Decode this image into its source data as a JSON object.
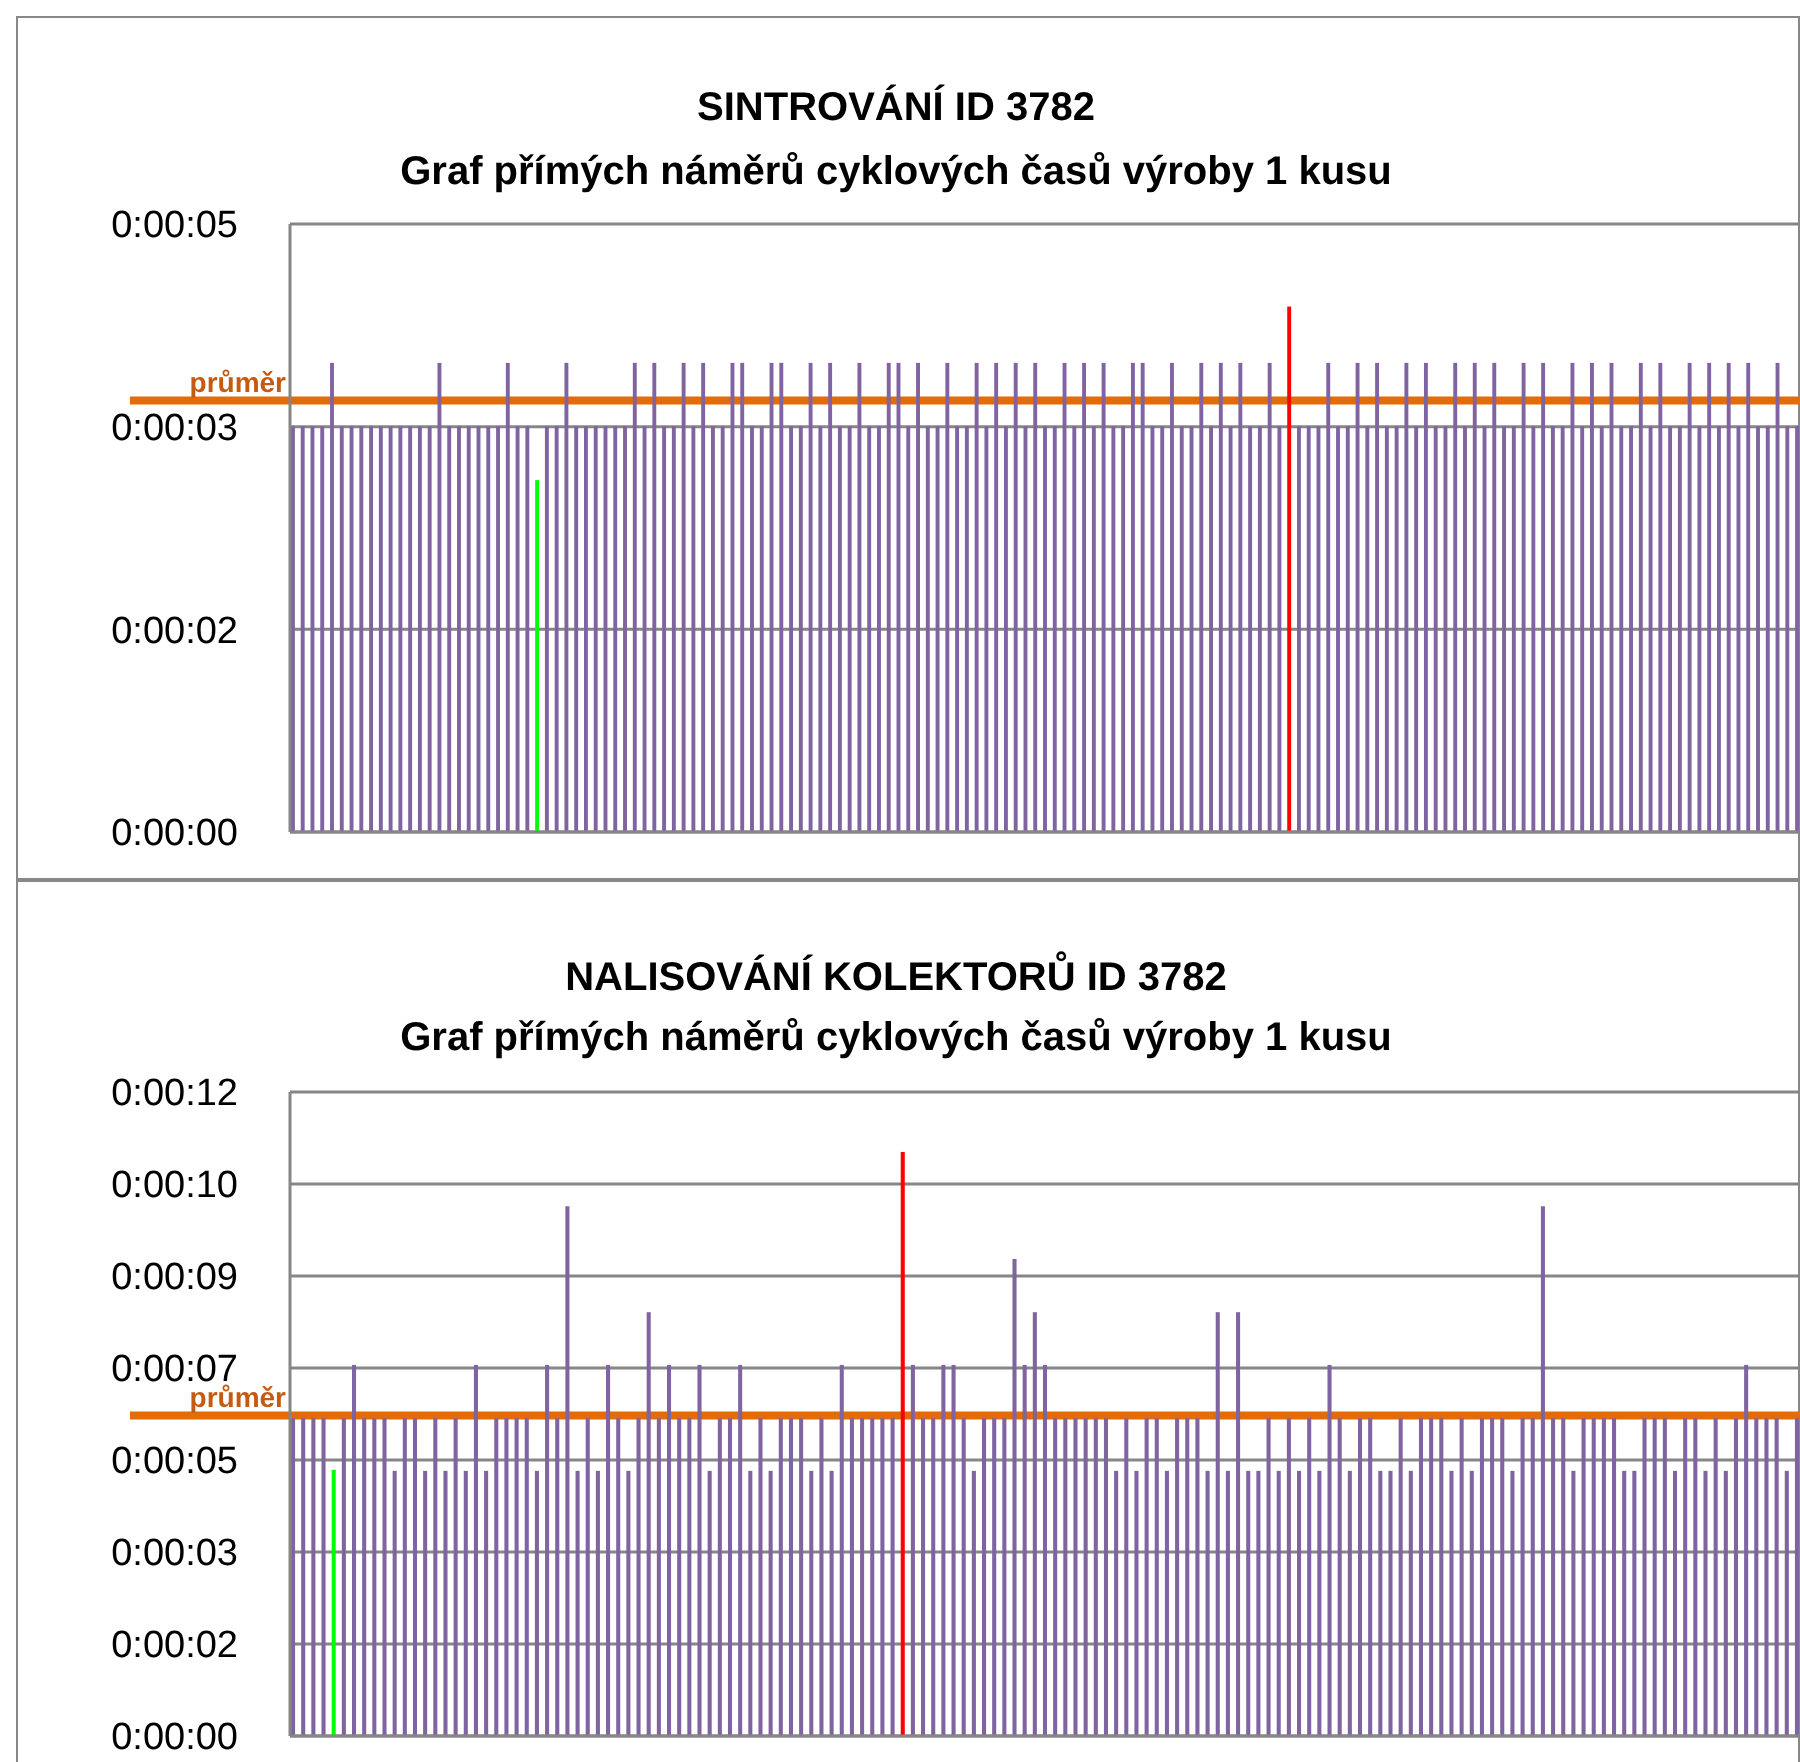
{
  "chart_data": [
    {
      "type": "bar",
      "title": "SINTROVÁNÍ ID 3782",
      "subtitle": "Graf přímých náměrů cyklových časů výroby 1 kusu",
      "categories": [
        null,
        null,
        null,
        null,
        null,
        null,
        null,
        null,
        null,
        null,
        null,
        null,
        null,
        null,
        null,
        null,
        null,
        null,
        null,
        null,
        null,
        null,
        null,
        null,
        null,
        null,
        null,
        null,
        null,
        null,
        null,
        null,
        null,
        null,
        null,
        null,
        null,
        null,
        null,
        null,
        null,
        null,
        null,
        null,
        null,
        null,
        null,
        null,
        null,
        null,
        null,
        null,
        null,
        null,
        null,
        null,
        null,
        null,
        null,
        null,
        null,
        null,
        null,
        null,
        null,
        null,
        null,
        null,
        null,
        null,
        null,
        null,
        null,
        null,
        null,
        null,
        null,
        null,
        null,
        null,
        null,
        null,
        null,
        null,
        null,
        null,
        null,
        null,
        null,
        null,
        null,
        null,
        null,
        null,
        null,
        null,
        null,
        null,
        null,
        null,
        null,
        null,
        null,
        null,
        null,
        null,
        null,
        null,
        null,
        null,
        null,
        null,
        null,
        null,
        null,
        null,
        null,
        null,
        null,
        null,
        null,
        null,
        null,
        null,
        null,
        null,
        null,
        null,
        null,
        null,
        null,
        null,
        null,
        null,
        null,
        null,
        null,
        null,
        null,
        null,
        null,
        null,
        null,
        null,
        null,
        null,
        null,
        null,
        null,
        null,
        null,
        null,
        null,
        null,
        null
      ],
      "values": [
        3.46,
        3.46,
        3.46,
        3.46,
        4.0,
        3.46,
        3.46,
        3.46,
        3.46,
        3.46,
        3.46,
        3.46,
        3.46,
        3.46,
        3.46,
        4.0,
        3.46,
        3.46,
        3.46,
        3.46,
        3.46,
        3.46,
        4.0,
        3.46,
        3.46,
        3.0,
        3.46,
        3.46,
        4.0,
        3.46,
        3.46,
        3.46,
        3.46,
        3.46,
        3.46,
        4.0,
        3.46,
        4.0,
        3.46,
        3.46,
        4.0,
        3.46,
        4.0,
        3.46,
        3.46,
        4.0,
        4.0,
        3.46,
        3.46,
        4.0,
        4.0,
        3.46,
        3.46,
        4.0,
        3.46,
        4.0,
        3.46,
        3.46,
        4.0,
        3.46,
        3.46,
        4.0,
        4.0,
        3.46,
        4.0,
        3.46,
        3.46,
        4.0,
        3.46,
        3.46,
        4.0,
        3.46,
        4.0,
        3.46,
        4.0,
        3.46,
        4.0,
        3.46,
        3.46,
        4.0,
        3.46,
        4.0,
        3.46,
        4.0,
        3.46,
        3.46,
        4.0,
        4.0,
        3.46,
        3.46,
        4.0,
        3.46,
        3.46,
        4.0,
        3.46,
        4.0,
        3.46,
        4.0,
        3.46,
        3.46,
        4.0,
        3.46,
        4.48,
        3.46,
        3.46,
        3.46,
        4.0,
        3.46,
        3.46,
        4.0,
        3.46,
        4.0,
        3.46,
        3.46,
        4.0,
        3.46,
        4.0,
        3.46,
        3.46,
        4.0,
        3.46,
        4.0,
        3.46,
        4.0,
        3.46,
        3.46,
        4.0,
        3.46,
        4.0,
        3.46,
        3.46,
        4.0,
        3.46,
        4.0,
        3.46,
        4.0,
        3.46,
        3.46,
        4.0,
        3.46,
        4.0,
        3.46,
        3.46,
        4.0,
        3.46,
        4.0,
        3.46,
        4.0,
        3.46,
        4.0,
        3.46,
        3.46,
        4.0,
        3.46,
        3.46
      ],
      "colors": [
        "#8064a2",
        "#8064a2",
        "#8064a2",
        "#8064a2",
        "#8064a2",
        "#8064a2",
        "#8064a2",
        "#8064a2",
        "#8064a2",
        "#8064a2",
        "#8064a2",
        "#8064a2",
        "#8064a2",
        "#8064a2",
        "#8064a2",
        "#8064a2",
        "#8064a2",
        "#8064a2",
        "#8064a2",
        "#8064a2",
        "#8064a2",
        "#8064a2",
        "#8064a2",
        "#8064a2",
        "#8064a2",
        "#00ff00",
        "#8064a2",
        "#8064a2",
        "#8064a2",
        "#8064a2",
        "#8064a2",
        "#8064a2",
        "#8064a2",
        "#8064a2",
        "#8064a2",
        "#8064a2",
        "#8064a2",
        "#8064a2",
        "#8064a2",
        "#8064a2",
        "#8064a2",
        "#8064a2",
        "#8064a2",
        "#8064a2",
        "#8064a2",
        "#8064a2",
        "#8064a2",
        "#8064a2",
        "#8064a2",
        "#8064a2",
        "#8064a2",
        "#8064a2",
        "#8064a2",
        "#8064a2",
        "#8064a2",
        "#8064a2",
        "#8064a2",
        "#8064a2",
        "#8064a2",
        "#8064a2",
        "#8064a2",
        "#8064a2",
        "#8064a2",
        "#8064a2",
        "#8064a2",
        "#8064a2",
        "#8064a2",
        "#8064a2",
        "#8064a2",
        "#8064a2",
        "#8064a2",
        "#8064a2",
        "#8064a2",
        "#8064a2",
        "#8064a2",
        "#8064a2",
        "#8064a2",
        "#8064a2",
        "#8064a2",
        "#8064a2",
        "#8064a2",
        "#8064a2",
        "#8064a2",
        "#8064a2",
        "#8064a2",
        "#8064a2",
        "#8064a2",
        "#8064a2",
        "#8064a2",
        "#8064a2",
        "#8064a2",
        "#8064a2",
        "#8064a2",
        "#8064a2",
        "#8064a2",
        "#8064a2",
        "#8064a2",
        "#8064a2",
        "#8064a2",
        "#8064a2",
        "#8064a2",
        "#8064a2",
        "#ff0000",
        "#8064a2",
        "#8064a2",
        "#8064a2",
        "#8064a2",
        "#8064a2",
        "#8064a2",
        "#8064a2",
        "#8064a2",
        "#8064a2",
        "#8064a2",
        "#8064a2",
        "#8064a2",
        "#8064a2",
        "#8064a2",
        "#8064a2",
        "#8064a2",
        "#8064a2",
        "#8064a2",
        "#8064a2",
        "#8064a2",
        "#8064a2",
        "#8064a2",
        "#8064a2",
        "#8064a2",
        "#8064a2",
        "#8064a2",
        "#8064a2",
        "#8064a2",
        "#8064a2",
        "#8064a2",
        "#8064a2",
        "#8064a2",
        "#8064a2",
        "#8064a2",
        "#8064a2",
        "#8064a2",
        "#8064a2",
        "#8064a2",
        "#8064a2",
        "#8064a2",
        "#8064a2",
        "#8064a2",
        "#8064a2",
        "#8064a2",
        "#8064a2",
        "#8064a2",
        "#8064a2",
        "#8064a2",
        "#8064a2",
        "#8064a2",
        "#8064a2",
        "#8064a2"
      ],
      "ylim": [
        0,
        5.184
      ],
      "yticks": [
        {
          "value": 0,
          "label": "0:00:00"
        },
        {
          "value": 1.728,
          "label": "0:00:02"
        },
        {
          "value": 3.456,
          "label": "0:00:03"
        },
        {
          "value": 5.184,
          "label": "0:00:05"
        }
      ],
      "grid": "y",
      "ref_lines": [
        {
          "axis": "y",
          "value": 3.68,
          "label": "průměr",
          "color": "#e36c09"
        }
      ]
    },
    {
      "type": "bar",
      "title": "NALISOVÁNÍ KOLEKTORŮ ID 3782",
      "subtitle": "Graf přímých náměrů cyklových časů výroby 1 kusu",
      "categories": [
        null,
        null,
        null,
        null,
        null,
        null,
        null,
        null,
        null,
        null,
        null,
        null,
        null,
        null,
        null,
        null,
        null,
        null,
        null,
        null,
        null,
        null,
        null,
        null,
        null,
        null,
        null,
        null,
        null,
        null,
        null,
        null,
        null,
        null,
        null,
        null,
        null,
        null,
        null,
        null,
        null,
        null,
        null,
        null,
        null,
        null,
        null,
        null,
        null,
        null,
        null,
        null,
        null,
        null,
        null,
        null,
        null,
        null,
        null,
        null,
        null,
        null,
        null,
        null,
        null,
        null,
        null,
        null,
        null,
        null,
        null,
        null,
        null,
        null,
        null,
        null,
        null,
        null,
        null,
        null,
        null,
        null,
        null,
        null,
        null,
        null,
        null,
        null,
        null,
        null,
        null,
        null,
        null,
        null,
        null,
        null,
        null,
        null,
        null,
        null,
        null,
        null,
        null,
        null,
        null,
        null,
        null,
        null,
        null,
        null,
        null,
        null,
        null,
        null,
        null,
        null,
        null,
        null,
        null,
        null,
        null,
        null,
        null,
        null,
        null,
        null,
        null,
        null,
        null,
        null,
        null,
        null,
        null,
        null,
        null,
        null,
        null,
        null,
        null,
        null,
        null,
        null,
        null,
        null,
        null,
        null,
        null,
        null,
        null
      ],
      "values": [
        5.97,
        5.97,
        5.97,
        5.97,
        5.0,
        5.97,
        6.97,
        5.97,
        5.97,
        5.97,
        4.98,
        5.97,
        5.97,
        4.98,
        5.97,
        4.98,
        5.97,
        4.98,
        6.97,
        4.98,
        5.97,
        5.97,
        5.97,
        5.97,
        4.98,
        6.97,
        5.97,
        9.95,
        4.98,
        5.97,
        4.98,
        6.97,
        5.97,
        4.98,
        5.97,
        7.96,
        5.97,
        6.97,
        5.97,
        5.97,
        6.97,
        4.98,
        5.97,
        5.97,
        6.97,
        4.98,
        5.97,
        4.98,
        5.97,
        5.97,
        5.97,
        4.98,
        5.97,
        4.98,
        6.97,
        5.97,
        5.97,
        5.97,
        5.97,
        5.97,
        10.97,
        6.97,
        5.97,
        5.97,
        6.97,
        6.97,
        5.97,
        4.98,
        5.97,
        5.97,
        5.97,
        8.96,
        6.97,
        7.96,
        6.97,
        5.97,
        5.97,
        5.97,
        5.97,
        5.97,
        5.97,
        4.98,
        5.97,
        4.98,
        5.97,
        5.97,
        4.98,
        5.97,
        5.97,
        5.97,
        4.98,
        7.96,
        4.98,
        7.96,
        4.98,
        4.98,
        5.97,
        4.98,
        5.97,
        4.98,
        5.97,
        4.98,
        6.97,
        5.97,
        4.98,
        5.97,
        5.97,
        4.98,
        4.98,
        5.97,
        4.98,
        5.97,
        5.97,
        5.97,
        4.98,
        5.97,
        4.98,
        5.97,
        5.97,
        5.97,
        4.98,
        5.97,
        5.97,
        9.95,
        5.97,
        5.97,
        4.98,
        5.97,
        5.97,
        5.97,
        5.97,
        4.98,
        4.98,
        5.97,
        5.97,
        5.97,
        4.98,
        5.97,
        5.97,
        4.98,
        5.97,
        4.98,
        5.97,
        6.97,
        5.97,
        5.97,
        5.97,
        4.98,
        5.97
      ],
      "colors": [
        "#8064a2",
        "#8064a2",
        "#8064a2",
        "#8064a2",
        "#00ff00",
        "#8064a2",
        "#8064a2",
        "#8064a2",
        "#8064a2",
        "#8064a2",
        "#8064a2",
        "#8064a2",
        "#8064a2",
        "#8064a2",
        "#8064a2",
        "#8064a2",
        "#8064a2",
        "#8064a2",
        "#8064a2",
        "#8064a2",
        "#8064a2",
        "#8064a2",
        "#8064a2",
        "#8064a2",
        "#8064a2",
        "#8064a2",
        "#8064a2",
        "#8064a2",
        "#8064a2",
        "#8064a2",
        "#8064a2",
        "#8064a2",
        "#8064a2",
        "#8064a2",
        "#8064a2",
        "#8064a2",
        "#8064a2",
        "#8064a2",
        "#8064a2",
        "#8064a2",
        "#8064a2",
        "#8064a2",
        "#8064a2",
        "#8064a2",
        "#8064a2",
        "#8064a2",
        "#8064a2",
        "#8064a2",
        "#8064a2",
        "#8064a2",
        "#8064a2",
        "#8064a2",
        "#8064a2",
        "#8064a2",
        "#8064a2",
        "#8064a2",
        "#8064a2",
        "#8064a2",
        "#8064a2",
        "#8064a2",
        "#ff0000",
        "#8064a2",
        "#8064a2",
        "#8064a2",
        "#8064a2",
        "#8064a2",
        "#8064a2",
        "#8064a2",
        "#8064a2",
        "#8064a2",
        "#8064a2",
        "#8064a2",
        "#8064a2",
        "#8064a2",
        "#8064a2",
        "#8064a2",
        "#8064a2",
        "#8064a2",
        "#8064a2",
        "#8064a2",
        "#8064a2",
        "#8064a2",
        "#8064a2",
        "#8064a2",
        "#8064a2",
        "#8064a2",
        "#8064a2",
        "#8064a2",
        "#8064a2",
        "#8064a2",
        "#8064a2",
        "#8064a2",
        "#8064a2",
        "#8064a2",
        "#8064a2",
        "#8064a2",
        "#8064a2",
        "#8064a2",
        "#8064a2",
        "#8064a2",
        "#8064a2",
        "#8064a2",
        "#8064a2",
        "#8064a2",
        "#8064a2",
        "#8064a2",
        "#8064a2",
        "#8064a2",
        "#8064a2",
        "#8064a2",
        "#8064a2",
        "#8064a2",
        "#8064a2",
        "#8064a2",
        "#8064a2",
        "#8064a2",
        "#8064a2",
        "#8064a2",
        "#8064a2",
        "#8064a2",
        "#8064a2",
        "#8064a2",
        "#8064a2",
        "#8064a2",
        "#8064a2",
        "#8064a2",
        "#8064a2",
        "#8064a2",
        "#8064a2",
        "#8064a2",
        "#8064a2",
        "#8064a2",
        "#8064a2",
        "#8064a2",
        "#8064a2",
        "#8064a2",
        "#8064a2",
        "#8064a2",
        "#8064a2",
        "#8064a2",
        "#8064a2",
        "#8064a2",
        "#8064a2",
        "#8064a2",
        "#8064a2",
        "#8064a2",
        "#8064a2",
        "#8064a2",
        "#8064a2"
      ],
      "ylim": [
        0,
        12.096
      ],
      "yticks": [
        {
          "value": 0,
          "label": "0:00:00"
        },
        {
          "value": 1.728,
          "label": "0:00:02"
        },
        {
          "value": 3.456,
          "label": "0:00:03"
        },
        {
          "value": 5.184,
          "label": "0:00:05"
        },
        {
          "value": 6.912,
          "label": "0:00:07"
        },
        {
          "value": 8.64,
          "label": "0:00:09"
        },
        {
          "value": 10.368,
          "label": "0:00:10"
        },
        {
          "value": 12.096,
          "label": "0:00:12"
        }
      ],
      "grid": "y",
      "ref_lines": [
        {
          "axis": "y",
          "value": 6.02,
          "label": "průměr",
          "color": "#e36c09"
        }
      ]
    }
  ]
}
